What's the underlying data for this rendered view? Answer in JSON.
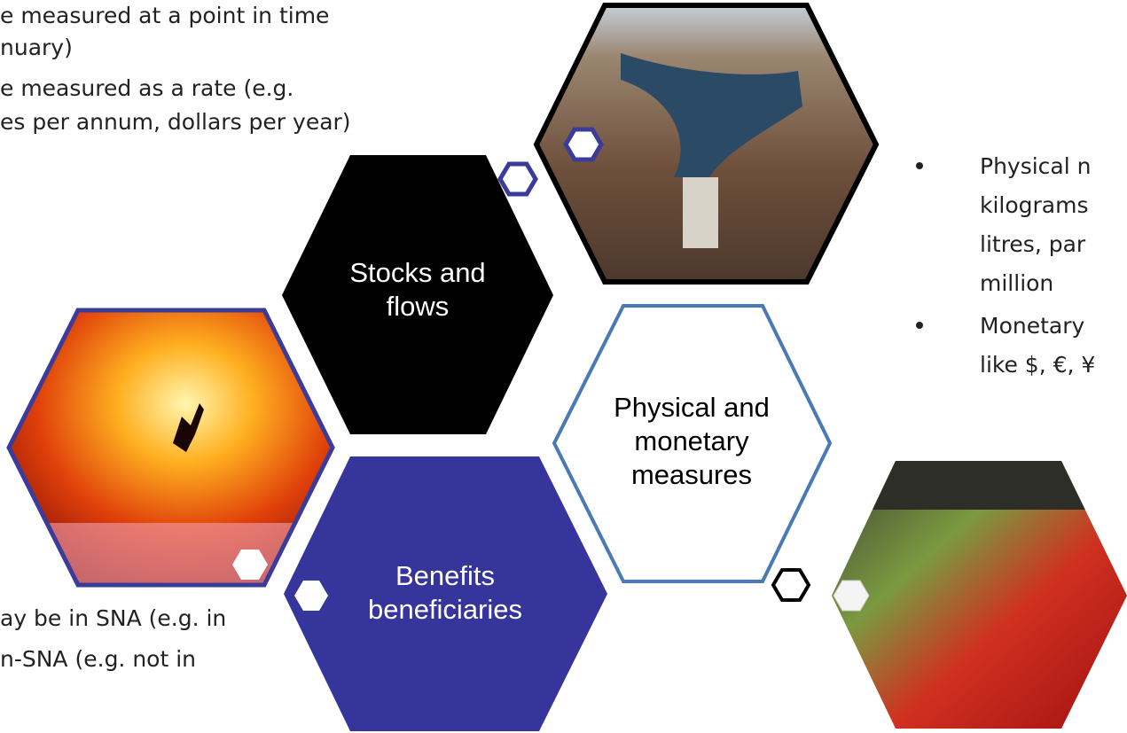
{
  "left_text": {
    "lines": [
      "e measured at a point in time",
      "nuary)",
      "e measured as a rate (e.g.",
      "es per annum, dollars per year)"
    ]
  },
  "hexagons": [
    {
      "lines": [
        "Stocks and",
        "flows"
      ]
    },
    {
      "lines": [
        "Physical and",
        "monetary",
        "measures"
      ]
    },
    {
      "lines": [
        "Benefits",
        "beneficiaries"
      ]
    }
  ],
  "right_text": {
    "bullets": [
      {
        "lines": [
          "Physical n",
          "kilograms",
          "litres, par",
          "million"
        ]
      },
      {
        "lines": [
          "Monetary",
          "like $, €, ¥"
        ]
      }
    ]
  },
  "bottom_text": {
    "lines": [
      "ay be in SNA (e.g. in",
      "n-SNA (e.g. not in"
    ]
  }
}
